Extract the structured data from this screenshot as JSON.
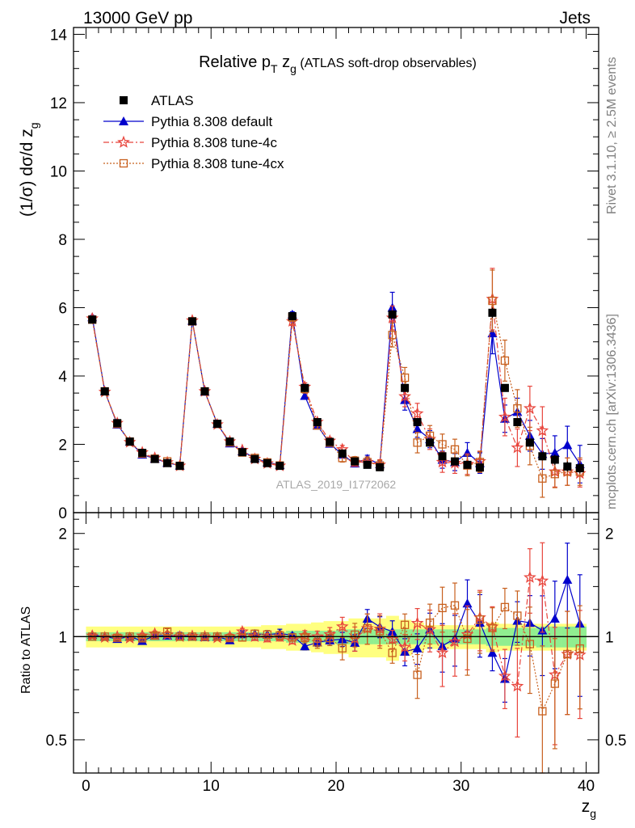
{
  "header": {
    "left": "13000 GeV pp",
    "right": "Jets"
  },
  "side_labels": {
    "rivet": "Rivet 3.1.10, ≥ 2.5M events",
    "mcplots": "mcplots.cern.ch [arXiv:1306.3436]"
  },
  "chart_data": {
    "type": "scatter",
    "title": {
      "main_prefix": "Relative p",
      "main_sub": "T",
      "main_mid": " z",
      "main_sub2": "g",
      "main_suffix": " (ATLAS soft-drop observables)"
    },
    "watermark": "ATLAS_2019_I1772062",
    "xlabel": {
      "base": "z",
      "sub": "g"
    },
    "ylabel_main": "(1/σ) dσ/d z",
    "ylabel_main_sub": "g",
    "ylabel_ratio": "Ratio to ATLAS",
    "xlim": [
      -1,
      41
    ],
    "ylim_main": [
      0,
      14.2
    ],
    "ylim_ratio": [
      0.4,
      2.3
    ],
    "xticks": [
      "0",
      "10",
      "20",
      "30",
      "40"
    ],
    "yticks_main": [
      "0",
      "2",
      "4",
      "6",
      "8",
      "10",
      "12",
      "14"
    ],
    "yticks_ratio": [
      "0.5",
      "1",
      "2"
    ],
    "legend": {
      "position": "top-left",
      "entries": [
        {
          "label": "ATLAS",
          "color": "#000000",
          "marker": "square"
        },
        {
          "label": "Pythia 8.308 default",
          "color": "#0000cc",
          "marker": "triangle"
        },
        {
          "label": "Pythia 8.308 tune-4c",
          "color": "#e8453c",
          "marker": "star"
        },
        {
          "label": "Pythia 8.308 tune-4cx",
          "color": "#c8601e",
          "marker": "open-square"
        }
      ]
    },
    "x": [
      0.5,
      1.5,
      2.5,
      3.5,
      4.5,
      5.5,
      6.5,
      7.5,
      8.5,
      9.5,
      10.5,
      11.5,
      12.5,
      13.5,
      14.5,
      15.5,
      16.5,
      17.5,
      18.5,
      19.5,
      20.5,
      21.5,
      22.5,
      23.5,
      24.5,
      25.5,
      26.5,
      27.5,
      28.5,
      29.5,
      30.5,
      31.5,
      32.5,
      33.5,
      34.5,
      35.5,
      36.5,
      37.5,
      38.5,
      39.5
    ],
    "series": [
      {
        "name": "ATLAS",
        "color": "#000000",
        "values": [
          5.65,
          3.55,
          2.62,
          2.08,
          1.75,
          1.57,
          1.45,
          1.37,
          5.6,
          3.55,
          2.6,
          2.08,
          1.77,
          1.57,
          1.45,
          1.37,
          5.75,
          3.65,
          2.65,
          2.07,
          1.73,
          1.5,
          1.4,
          1.33,
          5.8,
          3.65,
          2.65,
          2.05,
          1.65,
          1.5,
          1.4,
          1.32,
          5.85,
          3.65,
          2.65,
          2.05,
          1.65,
          1.55,
          1.35,
          1.3
        ],
        "errors": [
          0.08,
          0.05,
          0.04,
          0.03,
          0.03,
          0.03,
          0.03,
          0.03,
          0.08,
          0.05,
          0.04,
          0.03,
          0.03,
          0.03,
          0.03,
          0.03,
          0.09,
          0.06,
          0.05,
          0.04,
          0.04,
          0.04,
          0.04,
          0.04,
          0.12,
          0.08,
          0.07,
          0.07,
          0.07,
          0.07,
          0.07,
          0.07,
          0.15,
          0.1,
          0.1,
          0.1,
          0.12,
          0.15,
          0.15,
          0.15
        ]
      },
      {
        "name": "Pythia 8.308 default",
        "color": "#0000cc",
        "values": [
          5.72,
          3.55,
          2.58,
          2.08,
          1.7,
          1.58,
          1.46,
          1.38,
          5.62,
          3.54,
          2.6,
          2.03,
          1.8,
          1.6,
          1.47,
          1.4,
          5.8,
          3.42,
          2.55,
          2.02,
          1.7,
          1.44,
          1.58,
          1.42,
          6.0,
          3.3,
          2.45,
          2.15,
          1.55,
          1.48,
          1.75,
          1.45,
          5.25,
          2.75,
          2.95,
          2.25,
          1.72,
          1.75,
          1.98,
          1.42
        ],
        "errors": [
          0.05,
          0.04,
          0.04,
          0.03,
          0.03,
          0.03,
          0.03,
          0.03,
          0.06,
          0.05,
          0.04,
          0.04,
          0.04,
          0.04,
          0.04,
          0.04,
          0.08,
          0.08,
          0.07,
          0.07,
          0.08,
          0.08,
          0.1,
          0.1,
          0.45,
          0.3,
          0.25,
          0.25,
          0.25,
          0.25,
          0.3,
          0.3,
          0.6,
          0.4,
          0.4,
          0.45,
          0.45,
          0.5,
          0.55,
          0.55
        ]
      },
      {
        "name": "Pythia 8.308 tune-4c",
        "color": "#e8453c",
        "values": [
          5.68,
          3.53,
          2.62,
          2.06,
          1.76,
          1.6,
          1.47,
          1.37,
          5.62,
          3.55,
          2.58,
          2.08,
          1.83,
          1.57,
          1.44,
          1.37,
          5.6,
          3.68,
          2.65,
          2.1,
          1.85,
          1.48,
          1.48,
          1.4,
          5.7,
          3.4,
          2.9,
          2.15,
          1.48,
          1.45,
          1.42,
          1.5,
          6.25,
          2.8,
          1.9,
          3.05,
          2.4,
          1.2,
          1.2,
          1.15
        ],
        "errors": [
          0.05,
          0.04,
          0.04,
          0.03,
          0.03,
          0.03,
          0.03,
          0.03,
          0.06,
          0.05,
          0.04,
          0.04,
          0.04,
          0.04,
          0.04,
          0.04,
          0.12,
          0.12,
          0.1,
          0.1,
          0.12,
          0.12,
          0.15,
          0.15,
          0.35,
          0.3,
          0.3,
          0.3,
          0.3,
          0.3,
          0.3,
          0.3,
          0.9,
          0.55,
          0.55,
          0.65,
          0.7,
          0.45,
          0.4,
          0.4
        ]
      },
      {
        "name": "Pythia 8.308 tune-4cx",
        "color": "#c8601e",
        "values": [
          5.65,
          3.55,
          2.6,
          2.08,
          1.73,
          1.58,
          1.5,
          1.37,
          5.6,
          3.55,
          2.6,
          2.06,
          1.76,
          1.6,
          1.47,
          1.38,
          5.72,
          3.62,
          2.55,
          2.05,
          1.6,
          1.52,
          1.48,
          1.38,
          5.2,
          3.95,
          2.05,
          2.25,
          2.0,
          1.85,
          1.38,
          1.48,
          6.2,
          4.45,
          3.05,
          1.95,
          1.0,
          1.13,
          1.2,
          1.2
        ],
        "errors": [
          0.05,
          0.04,
          0.04,
          0.03,
          0.03,
          0.03,
          0.03,
          0.03,
          0.06,
          0.05,
          0.04,
          0.04,
          0.04,
          0.04,
          0.04,
          0.04,
          0.12,
          0.12,
          0.1,
          0.1,
          0.12,
          0.12,
          0.15,
          0.15,
          0.35,
          0.3,
          0.3,
          0.3,
          0.3,
          0.3,
          0.3,
          0.3,
          0.9,
          0.6,
          0.55,
          0.55,
          0.55,
          0.4,
          0.4,
          0.4
        ]
      }
    ],
    "ratio_band": {
      "stat_half_width": [
        0.03,
        0.03,
        0.03,
        0.03,
        0.03,
        0.03,
        0.03,
        0.03,
        0.03,
        0.03,
        0.03,
        0.03,
        0.03,
        0.03,
        0.03,
        0.03,
        0.04,
        0.04,
        0.04,
        0.04,
        0.05,
        0.05,
        0.05,
        0.05,
        0.05,
        0.05,
        0.05,
        0.05,
        0.05,
        0.05,
        0.05,
        0.05,
        0.06,
        0.06,
        0.06,
        0.06,
        0.07,
        0.07,
        0.07,
        0.07
      ],
      "total_half_width": [
        0.07,
        0.07,
        0.07,
        0.07,
        0.07,
        0.07,
        0.07,
        0.07,
        0.07,
        0.07,
        0.07,
        0.07,
        0.07,
        0.07,
        0.08,
        0.08,
        0.09,
        0.09,
        0.1,
        0.11,
        0.11,
        0.13,
        0.13,
        0.13,
        0.15,
        0.12,
        0.1,
        0.08,
        0.08,
        0.08,
        0.08,
        0.08,
        0.1,
        0.09,
        0.09,
        0.09,
        0.09,
        0.09,
        0.09,
        0.09
      ],
      "stat_color": "#90ee90",
      "total_color": "#ffff80"
    }
  }
}
